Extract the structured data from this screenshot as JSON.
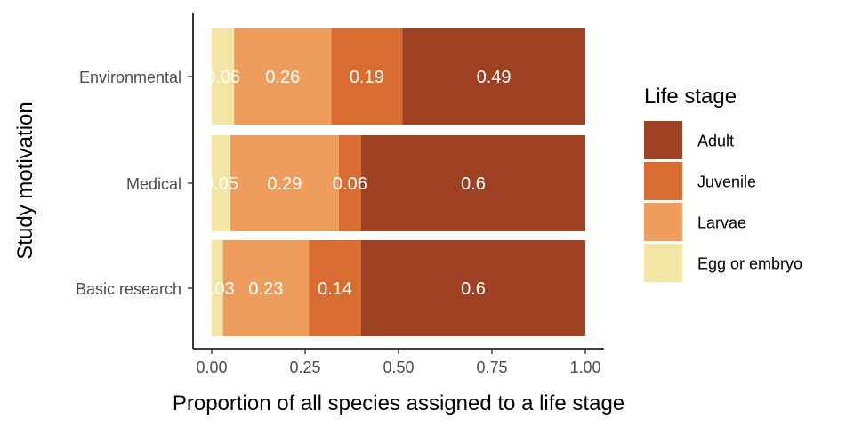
{
  "chart_data": {
    "type": "bar",
    "orientation": "horizontal",
    "stacked": true,
    "xlabel": "Proportion of all species assigned to a life stage",
    "ylabel": "Study motivation",
    "xlim": [
      0,
      1
    ],
    "x_ticks": [
      "0.00",
      "0.25",
      "0.50",
      "0.75",
      "1.00"
    ],
    "x_tick_values": [
      0,
      0.25,
      0.5,
      0.75,
      1.0
    ],
    "categories": [
      "Environmental",
      "Medical",
      "Basic research"
    ],
    "stack_order": [
      "Egg or embryo",
      "Larvae",
      "Juvenile",
      "Adult"
    ],
    "series": [
      {
        "name": "Egg or embryo",
        "color": "#f3e6a4",
        "values": [
          0.06,
          0.05,
          0.03
        ],
        "labels": [
          "0.06",
          "0.05",
          "0.03"
        ]
      },
      {
        "name": "Larvae",
        "color": "#ee9d5c",
        "values": [
          0.26,
          0.29,
          0.23
        ],
        "labels": [
          "0.26",
          "0.29",
          "0.23"
        ]
      },
      {
        "name": "Juvenile",
        "color": "#d86c31",
        "values": [
          0.19,
          0.06,
          0.14
        ],
        "labels": [
          "0.19",
          "0.06",
          "0.14"
        ]
      },
      {
        "name": "Adult",
        "color": "#9f4223",
        "values": [
          0.49,
          0.6,
          0.6
        ],
        "labels": [
          "0.49",
          "0.6",
          "0.6"
        ]
      }
    ],
    "legend": {
      "title": "Life stage",
      "position": "right",
      "entries": [
        "Adult",
        "Juvenile",
        "Larvae",
        "Egg or embryo"
      ]
    },
    "grid": false
  }
}
